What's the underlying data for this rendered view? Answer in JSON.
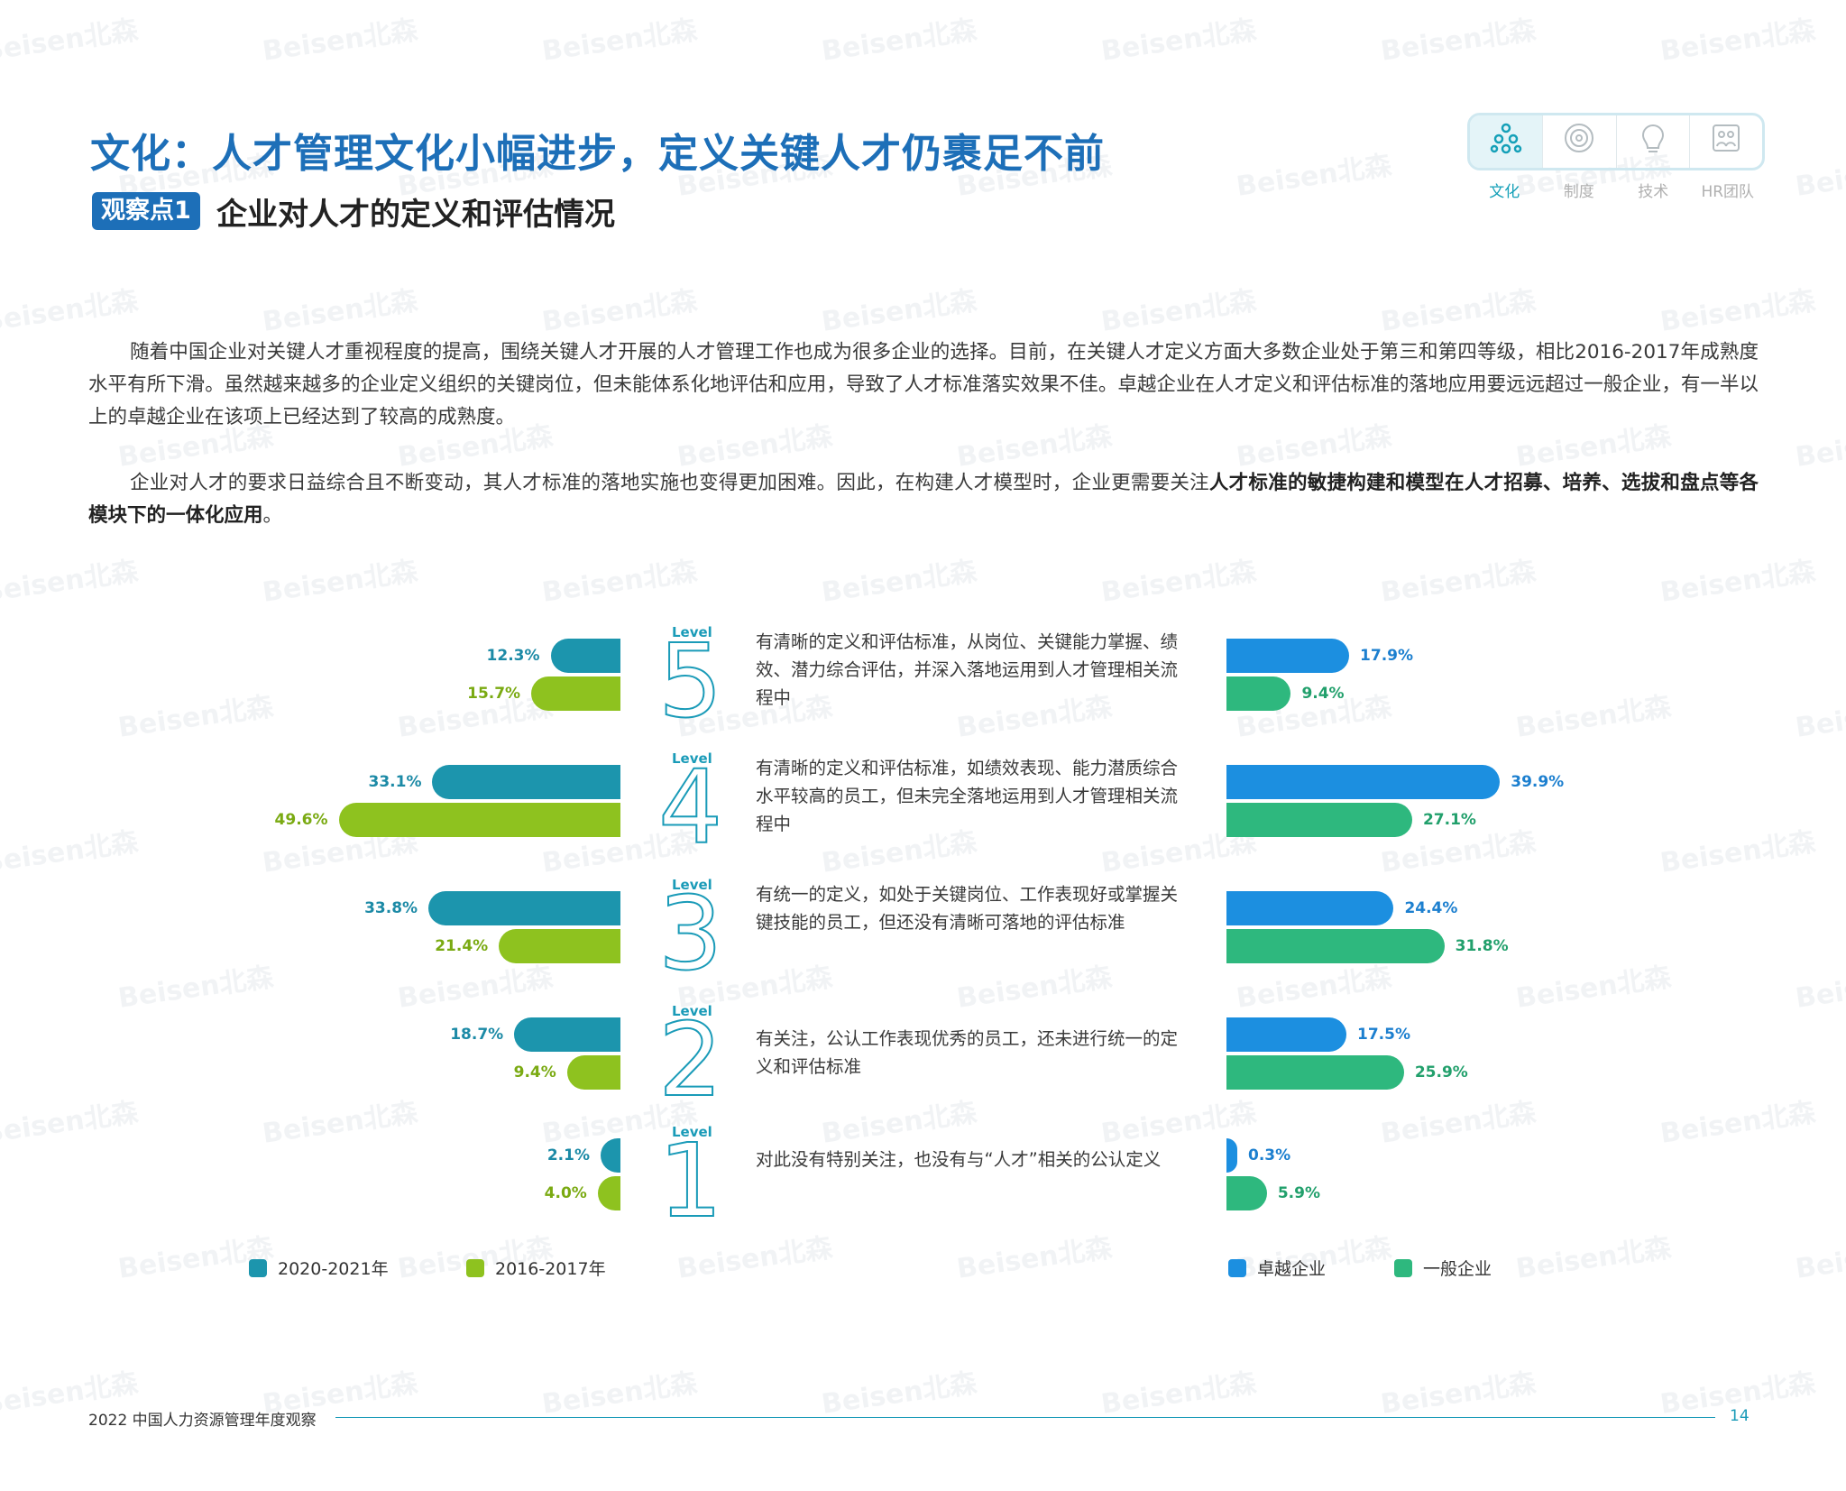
{
  "header": {
    "title": "文化：人才管理文化小幅进步，定义关键人才仍裹足不前",
    "badge": "观察点1",
    "subtitle": "企业对人才的定义和评估情况"
  },
  "nav": {
    "items": [
      {
        "label": "文化",
        "icon": "culture-icon",
        "active": true
      },
      {
        "label": "制度",
        "icon": "system-icon",
        "active": false
      },
      {
        "label": "技术",
        "icon": "technology-icon",
        "active": false
      },
      {
        "label": "HR团队",
        "icon": "hr-team-icon",
        "active": false
      }
    ]
  },
  "paragraphs": {
    "p1": "随着中国企业对关键人才重视程度的提高，围绕关键人才开展的人才管理工作也成为很多企业的选择。目前，在关键人才定义方面大多数企业处于第三和第四等级，相比2016-2017年成熟度水平有所下滑。虽然越来越多的企业定义组织的关键岗位，但未能体系化地评估和应用，导致了人才标准落实效果不佳。卓越企业在人才定义和评估标准的落地应用要远远超过一般企业，有一半以上的卓越企业在该项上已经达到了较高的成熟度。",
    "p2_lead": "企业对人才的要求日益综合且不断变动，其人才标准的落地实施也变得更加困难。因此，在构建人才模型时，企业更需要关注",
    "p2_bold": "人才标准的敏捷构建和模型在人才招募、培养、选拔和盘点等各模块下的一体化应用",
    "p2_end": "。"
  },
  "chart_data": [
    {
      "type": "bar",
      "orientation": "horizontal",
      "direction": "right-to-left",
      "categories": [
        "Level 5",
        "Level 4",
        "Level 3",
        "Level 2",
        "Level 1"
      ],
      "series": [
        {
          "name": "2020-2021年",
          "values": [
            12.3,
            33.1,
            33.8,
            18.7,
            2.1
          ],
          "color": "#1c95ad"
        },
        {
          "name": "2016-2017年",
          "values": [
            15.7,
            49.6,
            21.4,
            9.4,
            4.0
          ],
          "color": "#8ec21f"
        }
      ],
      "labels": [
        [
          "12.3%",
          "15.7%"
        ],
        [
          "33.1%",
          "49.6%"
        ],
        [
          "33.8%",
          "21.4%"
        ],
        [
          "18.7%",
          "9.4%"
        ],
        [
          "2.1%",
          "4.0%"
        ]
      ],
      "legend_position": "bottom"
    },
    {
      "type": "bar",
      "orientation": "horizontal",
      "direction": "left-to-right",
      "categories": [
        "Level 5",
        "Level 4",
        "Level 3",
        "Level 2",
        "Level 1"
      ],
      "series": [
        {
          "name": "卓越企业",
          "values": [
            17.9,
            39.9,
            24.4,
            17.5,
            0.3
          ],
          "color": "#1c8fe0"
        },
        {
          "name": "一般企业",
          "values": [
            9.4,
            27.1,
            31.8,
            25.9,
            5.9
          ],
          "color": "#2eb87e"
        }
      ],
      "labels": [
        [
          "17.9%",
          "9.4%"
        ],
        [
          "39.9%",
          "27.1%"
        ],
        [
          "24.4%",
          "31.8%"
        ],
        [
          "17.5%",
          "25.9%"
        ],
        [
          "0.3%",
          "5.9%"
        ]
      ],
      "legend_position": "bottom"
    }
  ],
  "levels": [
    {
      "word": "Level",
      "num": "5",
      "desc": "有清晰的定义和评估标准，从岗位、关键能力掌握、绩效、潜力综合评估，并深入落地运用到人才管理相关流程中"
    },
    {
      "word": "Level",
      "num": "4",
      "desc": "有清晰的定义和评估标准，如绩效表现、能力潜质综合水平较高的员工，但未完全落地运用到人才管理相关流程中"
    },
    {
      "word": "Level",
      "num": "3",
      "desc": "有统一的定义，如处于关键岗位、工作表现好或掌握关键技能的员工，但还没有清晰可落地的评估标准"
    },
    {
      "word": "Level",
      "num": "2",
      "desc": "有关注，公认工作表现优秀的员工，还未进行统一的定义和评估标准"
    },
    {
      "word": "Level",
      "num": "1",
      "desc": "对此没有特别关注，也没有与“人才”相关的公认定义"
    }
  ],
  "legend": {
    "left": [
      "2020-2021年",
      "2016-2017年"
    ],
    "right": [
      "卓越企业",
      "一般企业"
    ]
  },
  "footer": {
    "text": "2022 中国人力资源管理年度观察",
    "page": "14"
  },
  "watermark": "Beisen北森"
}
